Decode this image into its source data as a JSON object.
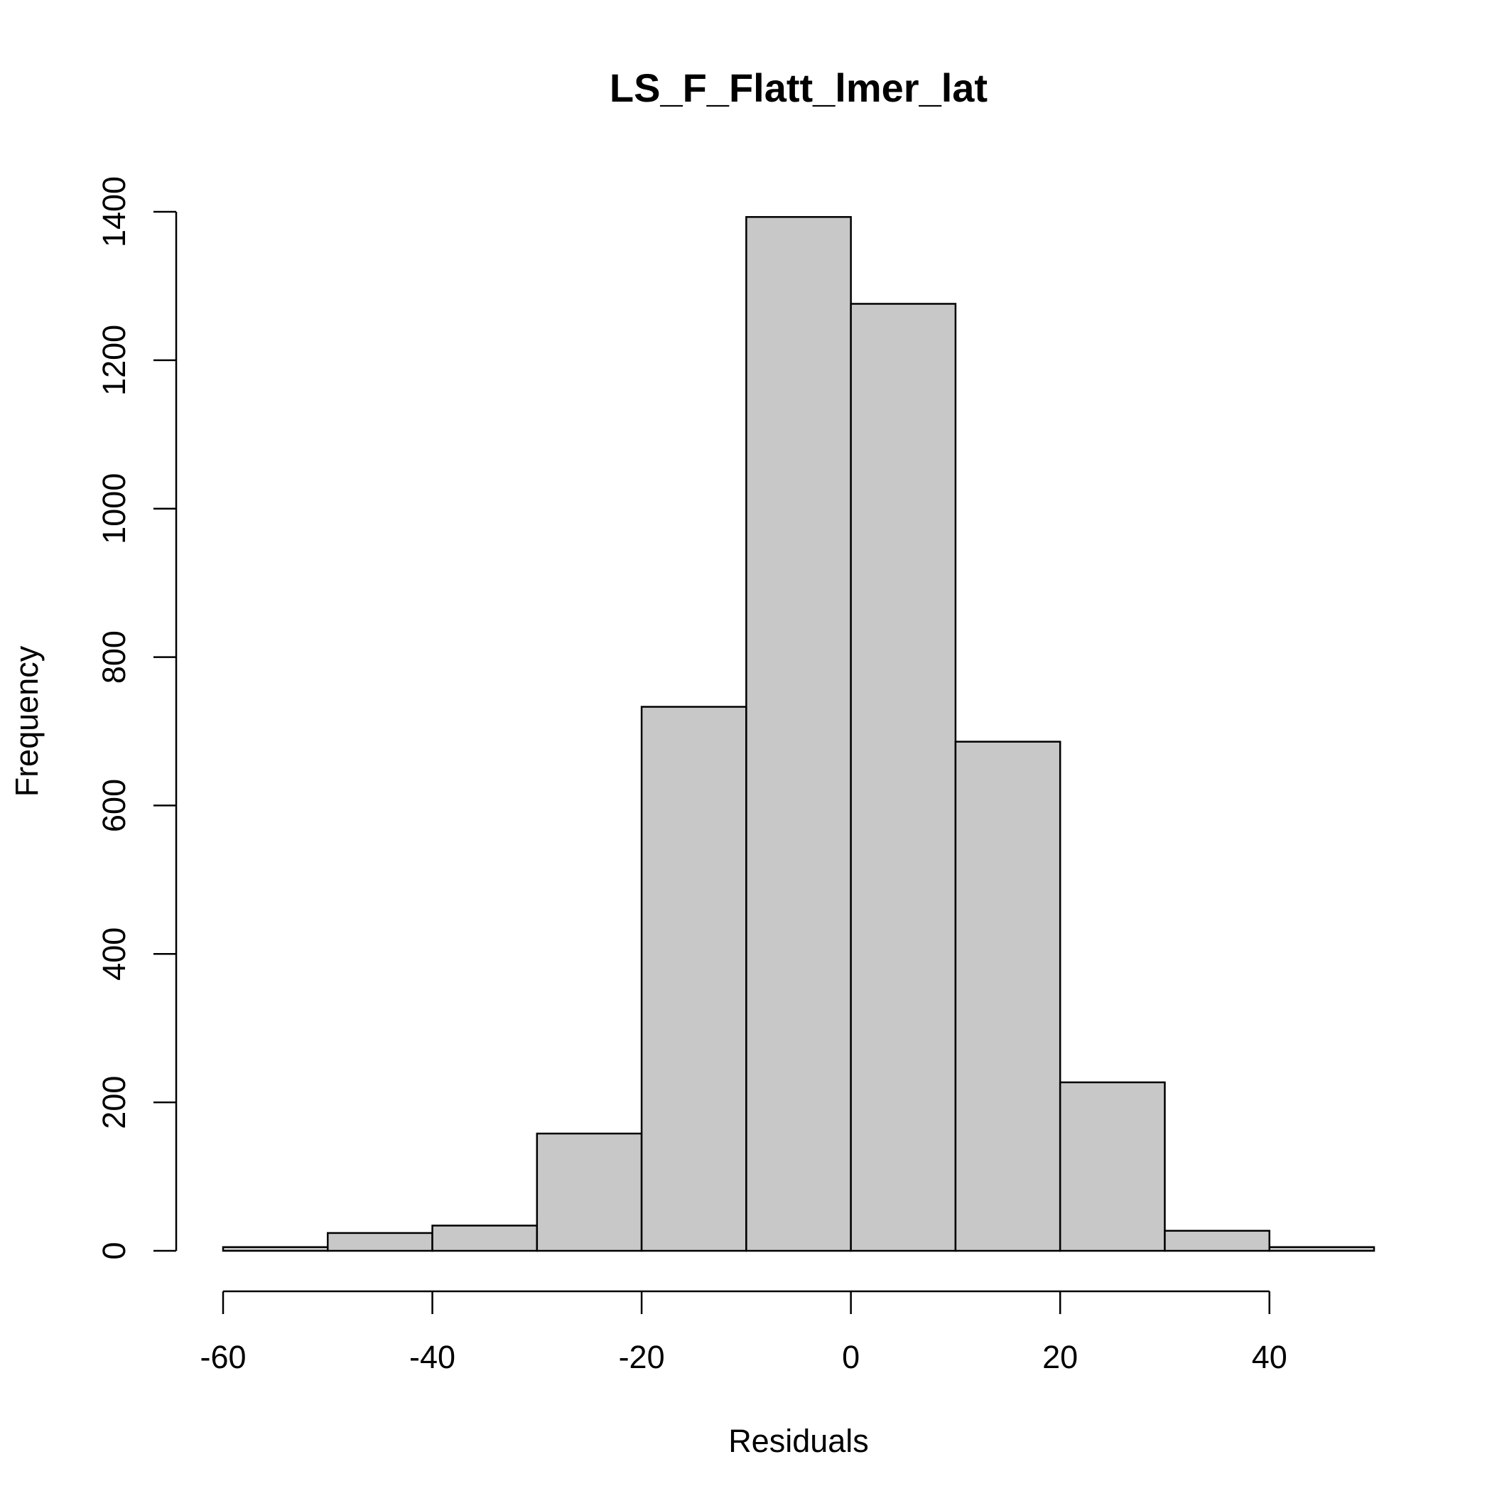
{
  "chart_data": {
    "type": "bar",
    "title": "LS_F_Flatt_lmer_lat",
    "xlabel": "Residuals",
    "ylabel": "Frequency",
    "bin_edges": [
      -60,
      -50,
      -40,
      -30,
      -20,
      -10,
      0,
      10,
      20,
      30,
      40,
      50
    ],
    "values": [
      5,
      24,
      34,
      158,
      733,
      1393,
      1276,
      686,
      227,
      27,
      5
    ],
    "xlim": [
      -60,
      50
    ],
    "ylim": [
      0,
      1400
    ],
    "x_ticks": [
      -60,
      -40,
      -20,
      0,
      20,
      40
    ],
    "y_ticks": [
      0,
      200,
      400,
      600,
      800,
      1000,
      1200,
      1400
    ],
    "grid": false,
    "bar_fill": "#c8c8c8",
    "bar_stroke": "#000000"
  }
}
